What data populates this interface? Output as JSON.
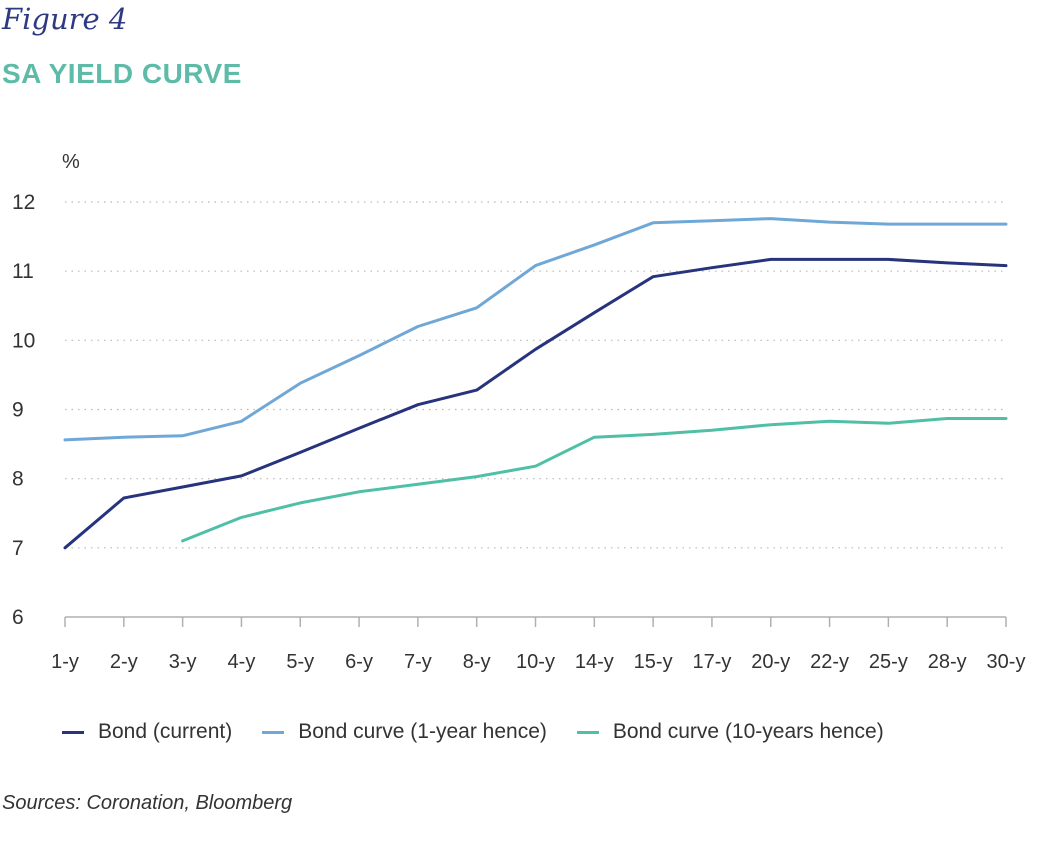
{
  "figure_label": "Figure 4",
  "chart_data": {
    "type": "line",
    "title": "SA YIELD CURVE",
    "ylabel": "%",
    "ylim": [
      6,
      12
    ],
    "yticks": [
      6,
      7,
      8,
      9,
      10,
      11,
      12
    ],
    "categories": [
      "1-y",
      "2-y",
      "3-y",
      "4-y",
      "5-y",
      "6-y",
      "7-y",
      "8-y",
      "10-y",
      "14-y",
      "15-y",
      "17-y",
      "20-y",
      "22-y",
      "25-y",
      "28-y",
      "30-y"
    ],
    "grid": "horizontal-dotted",
    "legend_position": "bottom",
    "series": [
      {
        "name": "Bond (current)",
        "color": "#27337d",
        "values": [
          7.0,
          7.72,
          7.88,
          8.04,
          8.38,
          8.73,
          9.07,
          9.28,
          9.87,
          10.4,
          10.92,
          11.05,
          11.17,
          11.17,
          11.17,
          11.12,
          11.08
        ]
      },
      {
        "name": "Bond curve (1-year hence)",
        "color": "#6fa8d6",
        "values": [
          8.56,
          8.6,
          8.62,
          8.83,
          9.38,
          9.78,
          10.2,
          10.47,
          11.08,
          11.38,
          11.7,
          11.73,
          11.76,
          11.71,
          11.68,
          11.68,
          11.68
        ]
      },
      {
        "name": "Bond curve (10-years hence)",
        "color": "#4fbfa6",
        "values": [
          null,
          null,
          7.1,
          7.44,
          7.65,
          7.81,
          7.92,
          8.03,
          8.18,
          8.6,
          8.64,
          8.7,
          8.78,
          8.83,
          8.8,
          8.87,
          8.87
        ]
      }
    ]
  },
  "sources": "Sources: Coronation, Bloomberg"
}
